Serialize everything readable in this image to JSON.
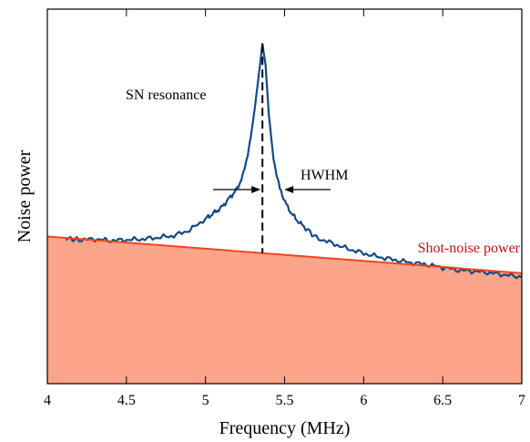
{
  "chart_data": {
    "type": "line",
    "xlabel": "Frequency (MHz)",
    "ylabel": "Noise power",
    "xlim": [
      4,
      7
    ],
    "ylim": [
      0,
      1
    ],
    "x_ticks": [
      "4",
      "4.5",
      "5",
      "5.5",
      "6",
      "6.5",
      "7"
    ],
    "x_tick_values": [
      4,
      4.5,
      5,
      5.5,
      6,
      6.5,
      7
    ],
    "y_ticks_shown": false,
    "grid": false,
    "colors": {
      "noise_curve": "#134a86",
      "shot_noise_line": "#f0461e",
      "shot_noise_fill": "#fca58a",
      "shot_noise_label": "#c0101a"
    },
    "shot_noise": {
      "label": "Shot-noise power",
      "start": [
        4.0,
        0.393
      ],
      "end": [
        7.0,
        0.295
      ]
    },
    "resonance": {
      "label": "SN resonance",
      "center": 5.36,
      "peak": 0.907,
      "hwhm": 0.13,
      "hwhm_label": "HWHM"
    },
    "series": [
      {
        "x": [
          4.12,
          4.2,
          4.3,
          4.4,
          4.5,
          4.6,
          4.7,
          4.8,
          4.9,
          5.0,
          5.05,
          5.1,
          5.15,
          5.2,
          5.24,
          5.28,
          5.31,
          5.33,
          5.35,
          5.36,
          5.38,
          5.4,
          5.43,
          5.47,
          5.52,
          5.57,
          5.62,
          5.7,
          5.8,
          5.9,
          6.0,
          6.1,
          6.2,
          6.3,
          6.4,
          6.5,
          6.6,
          6.7,
          6.8,
          6.9,
          7.0
        ],
        "values": [
          0.388,
          0.384,
          0.386,
          0.382,
          0.384,
          0.386,
          0.39,
          0.395,
          0.41,
          0.44,
          0.455,
          0.47,
          0.495,
          0.52,
          0.56,
          0.64,
          0.73,
          0.8,
          0.87,
          0.907,
          0.85,
          0.72,
          0.6,
          0.52,
          0.47,
          0.44,
          0.42,
          0.39,
          0.375,
          0.36,
          0.348,
          0.338,
          0.33,
          0.323,
          0.318,
          0.31,
          0.303,
          0.3,
          0.296,
          0.29,
          0.285
        ]
      }
    ]
  }
}
